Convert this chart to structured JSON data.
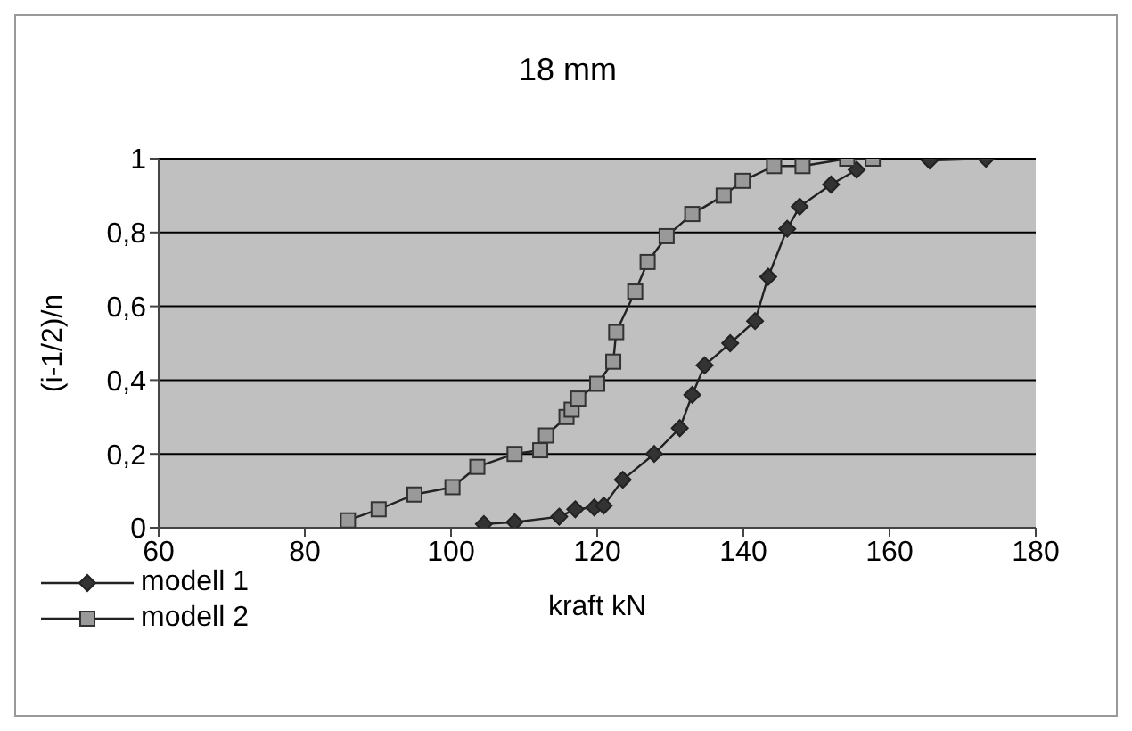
{
  "chart_data": {
    "type": "line",
    "title": "18 mm",
    "xlabel": "kraft kN",
    "ylabel": "(i-1/2)/n",
    "xlim": [
      60,
      180
    ],
    "xticks": [
      60,
      80,
      100,
      120,
      140,
      160,
      180
    ],
    "ylim": [
      0,
      1
    ],
    "yticks": [
      0,
      {
        "value": 0.2,
        "label": "0,2"
      },
      {
        "value": 0.4,
        "label": "0,4"
      },
      {
        "value": 0.6,
        "label": "0,6"
      },
      {
        "value": 0.8,
        "label": "0,8"
      },
      1
    ],
    "grid": "y",
    "legend": "bottom left",
    "line_style": "solid",
    "series": [
      {
        "name": "modell 1",
        "color": "#333333",
        "marker": "diamond",
        "x": [
          104.5,
          108.7,
          114.8,
          117,
          119.6,
          120.9,
          123.5,
          127.8,
          131.3,
          133,
          134.7,
          138.2,
          141.6,
          143.4,
          146,
          147.7,
          152,
          155.5,
          158,
          165.5,
          173.2
        ],
        "values": [
          0.01,
          0.015,
          0.03,
          0.05,
          0.055,
          0.06,
          0.13,
          0.2,
          0.27,
          0.36,
          0.44,
          0.5,
          0.56,
          0.68,
          0.81,
          0.87,
          0.93,
          0.97,
          null,
          0.995,
          1.0
        ]
      },
      {
        "name": "modell 2",
        "color": "#999999",
        "marker": "square",
        "x": [
          85.9,
          90.1,
          95,
          100.2,
          103.6,
          108.7,
          112.2,
          113,
          115.8,
          116.5,
          117.4,
          120,
          122.2,
          122.6,
          125.2,
          126.9,
          129.5,
          133,
          137.3,
          139.9,
          144.2,
          148.1,
          154.2,
          157.7
        ],
        "values": [
          0.02,
          0.05,
          0.09,
          0.11,
          0.165,
          0.2,
          0.21,
          0.25,
          0.3,
          0.32,
          0.35,
          0.39,
          0.45,
          0.53,
          0.64,
          0.72,
          0.79,
          0.85,
          0.9,
          0.94,
          0.98,
          0.98,
          1.0,
          1.0
        ]
      }
    ]
  }
}
